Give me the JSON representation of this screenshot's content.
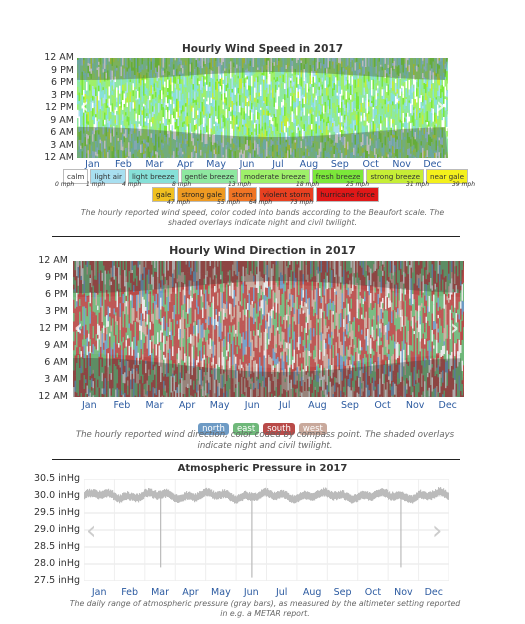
{
  "chart_data": [
    {
      "type": "heatmap",
      "title": "Hourly Wind Speed in 2017",
      "ylabels": [
        "12 AM",
        "9 PM",
        "6 PM",
        "3 PM",
        "12 PM",
        "9 AM",
        "6 AM",
        "3 AM",
        "12 AM"
      ],
      "xlabels": [
        "Jan",
        "Feb",
        "Mar",
        "Apr",
        "May",
        "Jun",
        "Jul",
        "Aug",
        "Sep",
        "Oct",
        "Nov",
        "Dec"
      ],
      "legend": [
        {
          "label": "calm",
          "color": "#ffffff"
        },
        {
          "label": "light air",
          "color": "#a8dff0"
        },
        {
          "label": "light breeze",
          "color": "#86e0d8"
        },
        {
          "label": "gentle breeze",
          "color": "#8ee8a0"
        },
        {
          "label": "moderate breeze",
          "color": "#9ef06a"
        },
        {
          "label": "fresh breeze",
          "color": "#7be83a"
        },
        {
          "label": "strong breeze",
          "color": "#c6ee36"
        },
        {
          "label": "near gale",
          "color": "#f4f01c"
        },
        {
          "label": "gale",
          "color": "#f0c020"
        },
        {
          "label": "strong gale",
          "color": "#ee9a22"
        },
        {
          "label": "storm",
          "color": "#f07424"
        },
        {
          "label": "violent storm",
          "color": "#e84020"
        },
        {
          "label": "hurricane force",
          "color": "#e01818"
        }
      ],
      "legend_ticks_row1": [
        "0 mph",
        "1 mph",
        "4 mph",
        "8 mph",
        "13 mph",
        "18 mph",
        "25 mph",
        "31 mph",
        "39 mph"
      ],
      "legend_ticks_row2": [
        "47 mph",
        "55 mph",
        "64 mph",
        "73 mph"
      ],
      "caption": "The hourly reported wind speed, color coded into bands according to the Beaufort scale. The shaded overlays indicate night and civil twilight."
    },
    {
      "type": "heatmap",
      "title": "Hourly Wind Direction in 2017",
      "ylabels": [
        "12 AM",
        "9 PM",
        "6 PM",
        "3 PM",
        "12 PM",
        "9 AM",
        "6 AM",
        "3 AM",
        "12 AM"
      ],
      "xlabels": [
        "Jan",
        "Feb",
        "Mar",
        "Apr",
        "May",
        "Jun",
        "Jul",
        "Aug",
        "Sep",
        "Oct",
        "Nov",
        "Dec"
      ],
      "legend": [
        {
          "label": "north",
          "color": "#6e9bc5"
        },
        {
          "label": "east",
          "color": "#6fb87a"
        },
        {
          "label": "south",
          "color": "#b94a48"
        },
        {
          "label": "west",
          "color": "#c9a99c"
        }
      ],
      "caption": "The hourly reported wind direction, color coded by compass point. The shaded overlays indicate night and civil twilight."
    },
    {
      "type": "bar",
      "title": "Atmospheric Pressure in 2017",
      "yticks": [
        "30.5 inHg",
        "30.0 inHg",
        "29.5 inHg",
        "29.0 inHg",
        "28.5 inHg",
        "28.0 inHg",
        "27.5 inHg"
      ],
      "ylim": [
        27.5,
        30.5
      ],
      "xlabels": [
        "Jan",
        "Feb",
        "Mar",
        "Apr",
        "May",
        "Jun",
        "Jul",
        "Aug",
        "Sep",
        "Oct",
        "Nov",
        "Dec"
      ],
      "daily_range_approx": {
        "typical_low": 29.9,
        "typical_high": 30.1
      },
      "spikes": [
        {
          "month_pos": 2.5,
          "low": 27.9
        },
        {
          "month_pos": 5.5,
          "low": 27.6
        },
        {
          "month_pos": 10.4,
          "low": 27.9
        }
      ],
      "caption": "The daily range of atmospheric pressure (gray bars), as measured by the altimeter setting reported in e.g. a METAR report."
    }
  ],
  "colors": {
    "night_overlay": "rgba(60,60,60,0.35)",
    "pressure_bar": "#bbbbbb",
    "axis_month": "#2b5aa0"
  },
  "icons": {
    "prev": "chevron-left-icon",
    "next": "chevron-right-icon"
  }
}
